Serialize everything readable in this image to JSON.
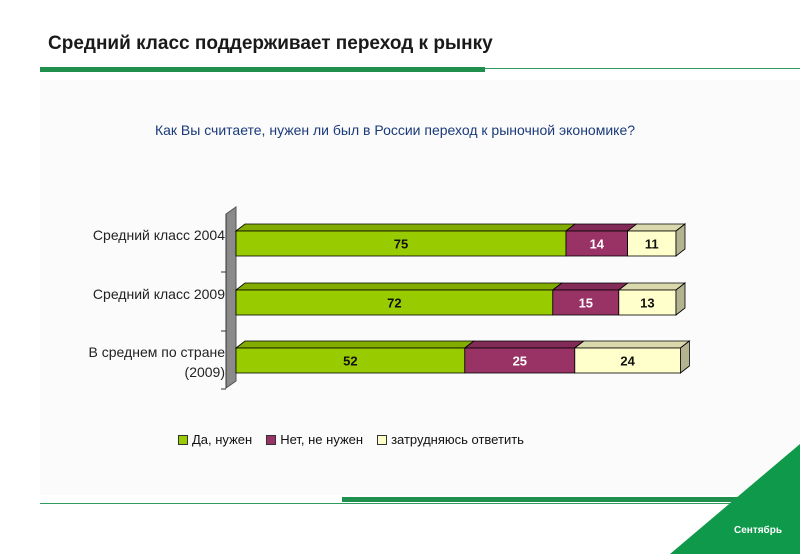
{
  "slide": {
    "title": "Средний класс поддерживает переход к рынку",
    "corner_label": "Сентябрь"
  },
  "chart_data": {
    "type": "bar",
    "orientation": "horizontal",
    "stacked": true,
    "title": "Как Вы считаете, нужен ли был в России переход к рыночной экономике?",
    "categories": [
      "Средний класс 2004",
      "Средний класс 2009",
      "В среднем по стране (2009)"
    ],
    "series": [
      {
        "name": "Да, нужен",
        "color": "#99cc00",
        "values": [
          75,
          72,
          52
        ]
      },
      {
        "name": "Нет, не нужен",
        "color": "#993366",
        "values": [
          14,
          15,
          25
        ]
      },
      {
        "name": "затрудняюсь ответить",
        "color": "#ffffcc",
        "values": [
          11,
          13,
          24
        ]
      }
    ],
    "legend_position": "bottom",
    "grid": false,
    "style": "3d"
  }
}
